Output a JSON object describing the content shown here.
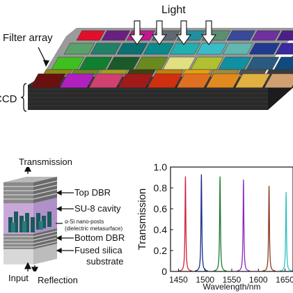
{
  "top_panel": {
    "light_label": "Light",
    "filter_array_label": "Filter array",
    "ccd_label": "CCD"
  },
  "device_panel": {
    "transmission_label": "Transmission",
    "top_dbr_label": "Top DBR",
    "cavity_label": "SU-8 cavity",
    "nanoposts_label": "α-Si nano-posts",
    "metasurface_label": "(dielectric metasurface)",
    "bottom_dbr_label": "Bottom DBR",
    "substrate_label_1": "Fused silica",
    "substrate_label_2": "substrate",
    "input_label": "Input",
    "reflection_label": "Reflection"
  },
  "colors": {
    "filter_row1": [
      "#e0102a",
      "#6a2080",
      "#c01890",
      "#606870",
      "#2090a0",
      "#5a9070",
      "#3a4a9a",
      "#7030a0",
      "#4a2088"
    ],
    "filter_row2": [
      "#5aa06a",
      "#208068",
      "#0a7070",
      "#0a8a8a",
      "#20b0b0",
      "#3abcc8",
      "#60b8b0",
      "#203a90",
      "#3a2aa0"
    ],
    "filter_row3": [
      "#40c020",
      "#108030",
      "#1a5a2a",
      "#6a8a20",
      "#e0e080",
      "#b0c030",
      "#1090a0",
      "#2a5a80",
      "#104a80"
    ],
    "filter_row4": [
      "#8a8a10",
      "#6a8a20",
      "#a0a020",
      "#404010",
      "#c08010",
      "#e8a010",
      "#a08a40",
      "#505050",
      "#3a3a3a"
    ],
    "filter_row5": [
      "#6a1010",
      "#b020c0",
      "#d04070",
      "#a01a1a",
      "#d03010",
      "#e07020",
      "#e08a20",
      "#e0b040",
      "#d0a070"
    ]
  },
  "chart_data": {
    "type": "line",
    "title": "",
    "xlabel": "Wavelength/nm",
    "ylabel": "Transmission",
    "xlim": [
      1435,
      1665
    ],
    "ylim": [
      0,
      1.0
    ],
    "x_ticks": [
      1450,
      1500,
      1550,
      1600,
      1650
    ],
    "y_ticks": [
      0,
      0.2,
      0.4,
      0.6,
      0.8,
      1.0
    ],
    "y_tick_labels": [
      "0",
      "0.2",
      "0.4",
      "0.6",
      "0.8",
      "1.0"
    ],
    "grid": false,
    "series": [
      {
        "peak_x": 1463,
        "peak_y": 0.91,
        "color": "#d0203a"
      },
      {
        "peak_x": 1493,
        "peak_y": 0.93,
        "color": "#1a2a8a"
      },
      {
        "peak_x": 1528,
        "peak_y": 0.91,
        "color": "#1a7a2a"
      },
      {
        "peak_x": 1572,
        "peak_y": 0.88,
        "color": "#8a2ac0"
      },
      {
        "peak_x": 1620,
        "peak_y": 0.82,
        "color": "#8a3a20"
      },
      {
        "peak_x": 1652,
        "peak_y": 0.76,
        "color": "#30c0c0"
      }
    ]
  }
}
